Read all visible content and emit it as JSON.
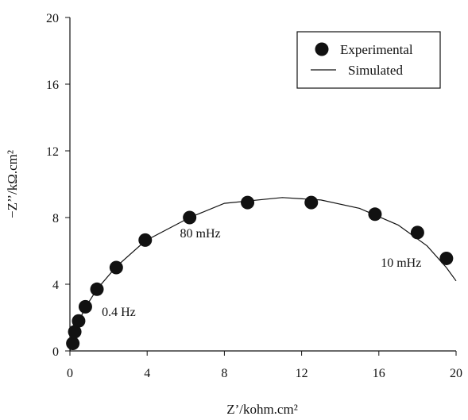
{
  "chart_data": {
    "type": "scatter",
    "xlabel": "Z’/kohm.cm²",
    "ylabel": "−Z’’/kΩ.cm²",
    "xlim": [
      0,
      20
    ],
    "ylim": [
      0,
      20
    ],
    "xticks": [
      0,
      4,
      8,
      12,
      16,
      20
    ],
    "yticks": [
      0,
      4,
      8,
      12,
      16,
      20
    ],
    "grid": false,
    "legend": {
      "placement": "top-right",
      "entries": [
        "Experimental",
        "Simulated"
      ]
    },
    "series": [
      {
        "name": "Experimental",
        "kind": "markers",
        "marker": "filled-circle",
        "color": "#111111",
        "points": [
          [
            0.15,
            0.45
          ],
          [
            0.25,
            1.15
          ],
          [
            0.45,
            1.8
          ],
          [
            0.8,
            2.65
          ],
          [
            1.4,
            3.7
          ],
          [
            2.4,
            5.0
          ],
          [
            3.9,
            6.65
          ],
          [
            6.2,
            8.0
          ],
          [
            9.2,
            8.9
          ],
          [
            12.5,
            8.9
          ],
          [
            15.8,
            8.2
          ],
          [
            18.0,
            7.1
          ],
          [
            19.5,
            5.55
          ]
        ]
      },
      {
        "name": "Simulated",
        "kind": "line",
        "color": "#111111",
        "points": [
          [
            0.0,
            0.0
          ],
          [
            0.1,
            0.5
          ],
          [
            0.25,
            1.1
          ],
          [
            0.5,
            1.9
          ],
          [
            0.85,
            2.7
          ],
          [
            1.4,
            3.7
          ],
          [
            2.4,
            5.05
          ],
          [
            3.9,
            6.6
          ],
          [
            6.2,
            8.0
          ],
          [
            8.0,
            8.85
          ],
          [
            11.0,
            9.2
          ],
          [
            13.0,
            9.05
          ],
          [
            15.0,
            8.55
          ],
          [
            17.0,
            7.55
          ],
          [
            18.5,
            6.3
          ],
          [
            19.5,
            5.0
          ],
          [
            20.0,
            4.2
          ]
        ]
      }
    ],
    "annotations": [
      {
        "text": "0.4 Hz",
        "x": 1.65,
        "y": 2.1
      },
      {
        "text": "80 mHz",
        "x": 5.7,
        "y": 6.8
      },
      {
        "text": "10 mHz",
        "x": 16.1,
        "y": 5.05
      }
    ]
  }
}
